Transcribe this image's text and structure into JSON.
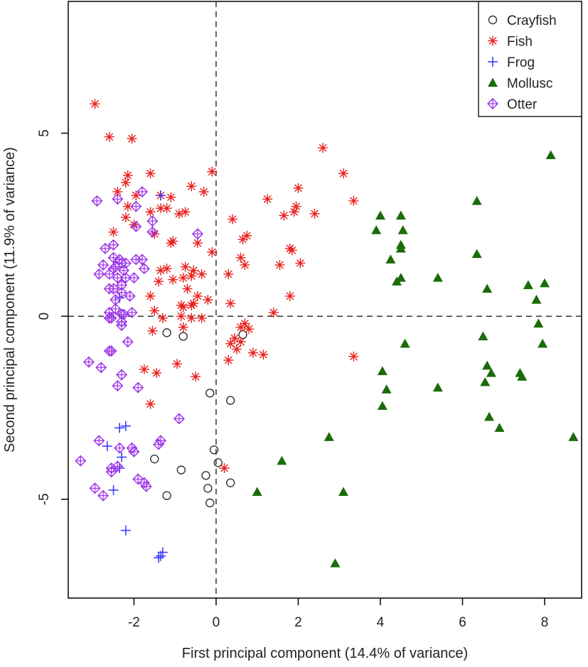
{
  "chart_data": {
    "type": "scatter",
    "title": "",
    "xlabel": "First principal component (14.4% of variance)",
    "ylabel": "Second principal component (11.9% of variance)",
    "xlim": [
      -3.6,
      8.9
    ],
    "ylim": [
      -7.7,
      8.6
    ],
    "xticks": [
      -2,
      0,
      2,
      4,
      6,
      8
    ],
    "yticks": [
      -5,
      0,
      5
    ],
    "grid": false,
    "reference_lines": {
      "x": 0,
      "y": 0,
      "style": "dashed"
    },
    "legend": {
      "position": "top-right"
    },
    "series": [
      {
        "name": "Crayfish",
        "marker": "open-circle",
        "color": "#333333",
        "points": [
          [
            -1.2,
            -0.45
          ],
          [
            -0.8,
            -0.55
          ],
          [
            0.65,
            -0.5
          ],
          [
            -0.15,
            -2.1
          ],
          [
            0.35,
            -2.3
          ],
          [
            -1.5,
            -3.9
          ],
          [
            -0.05,
            -3.65
          ],
          [
            0.05,
            -4.0
          ],
          [
            -0.85,
            -4.2
          ],
          [
            -0.25,
            -4.35
          ],
          [
            -0.2,
            -4.7
          ],
          [
            0.35,
            -4.55
          ],
          [
            -1.2,
            -4.9
          ],
          [
            -0.15,
            -5.1
          ]
        ]
      },
      {
        "name": "Fish",
        "marker": "asterisk",
        "color": "#e8201c",
        "points": [
          [
            -2.95,
            5.8
          ],
          [
            -2.6,
            4.9
          ],
          [
            -2.05,
            4.85
          ],
          [
            -0.1,
            3.95
          ],
          [
            2.6,
            4.6
          ],
          [
            3.1,
            3.9
          ],
          [
            -2.15,
            3.85
          ],
          [
            -2.2,
            3.65
          ],
          [
            -1.6,
            3.9
          ],
          [
            -0.6,
            3.55
          ],
          [
            -0.3,
            3.4
          ],
          [
            -2.4,
            3.4
          ],
          [
            -1.95,
            3.3
          ],
          [
            -1.35,
            3.3
          ],
          [
            -1.1,
            3.25
          ],
          [
            2.0,
            3.5
          ],
          [
            1.25,
            3.2
          ],
          [
            3.35,
            3.15
          ],
          [
            1.95,
            3.0
          ],
          [
            1.9,
            2.85
          ],
          [
            -2.15,
            3.0
          ],
          [
            -1.2,
            2.95
          ],
          [
            -1.35,
            2.95
          ],
          [
            -1.6,
            2.85
          ],
          [
            -0.9,
            2.8
          ],
          [
            -0.75,
            2.85
          ],
          [
            2.4,
            2.8
          ],
          [
            1.65,
            2.75
          ],
          [
            0.4,
            2.65
          ],
          [
            -2.2,
            2.7
          ],
          [
            -2.5,
            2.3
          ],
          [
            -2.0,
            2.5
          ],
          [
            -1.5,
            2.25
          ],
          [
            0.75,
            2.2
          ],
          [
            0.65,
            2.1
          ],
          [
            -1.1,
            2.0
          ],
          [
            -1.05,
            2.05
          ],
          [
            -0.45,
            2.0
          ],
          [
            1.8,
            1.85
          ],
          [
            1.85,
            1.8
          ],
          [
            -0.1,
            1.75
          ],
          [
            0.6,
            1.6
          ],
          [
            -0.75,
            1.35
          ],
          [
            -0.55,
            1.25
          ],
          [
            -1.2,
            1.3
          ],
          [
            -1.35,
            1.25
          ],
          [
            -0.35,
            1.15
          ],
          [
            0.3,
            1.15
          ],
          [
            0.7,
            1.4
          ],
          [
            1.55,
            1.4
          ],
          [
            2.05,
            1.45
          ],
          [
            -0.6,
            1.1
          ],
          [
            -0.8,
            1.05
          ],
          [
            -1.05,
            1.0
          ],
          [
            -1.4,
            0.95
          ],
          [
            -0.7,
            0.75
          ],
          [
            -0.45,
            0.55
          ],
          [
            -1.6,
            0.55
          ],
          [
            -0.2,
            0.45
          ],
          [
            0.35,
            0.35
          ],
          [
            -0.85,
            0.3
          ],
          [
            -0.55,
            0.35
          ],
          [
            -0.6,
            0.3
          ],
          [
            -0.8,
            0.25
          ],
          [
            -1.5,
            0.15
          ],
          [
            1.8,
            0.55
          ],
          [
            1.4,
            0.1
          ],
          [
            -1.3,
            -0.05
          ],
          [
            -0.85,
            0.0
          ],
          [
            -0.6,
            -0.05
          ],
          [
            -0.35,
            -0.05
          ],
          [
            0.7,
            -0.2
          ],
          [
            0.6,
            -0.3
          ],
          [
            0.8,
            -0.35
          ],
          [
            0.45,
            -0.6
          ],
          [
            0.35,
            -0.75
          ],
          [
            0.6,
            -0.7
          ],
          [
            0.5,
            -0.9
          ],
          [
            -0.8,
            -0.3
          ],
          [
            -1.55,
            -0.4
          ],
          [
            0.9,
            -1.0
          ],
          [
            1.15,
            -1.05
          ],
          [
            3.35,
            -1.1
          ],
          [
            0.3,
            -1.2
          ],
          [
            -0.95,
            -1.3
          ],
          [
            -1.75,
            -1.45
          ],
          [
            -1.45,
            -1.55
          ],
          [
            -0.5,
            -1.65
          ],
          [
            -1.6,
            -2.4
          ],
          [
            0.2,
            -4.15
          ]
        ]
      },
      {
        "name": "Frog",
        "marker": "plus",
        "color": "#3b3bff",
        "points": [
          [
            -1.35,
            3.3
          ],
          [
            -2.35,
            0.5
          ],
          [
            -2.35,
            -3.05
          ],
          [
            -2.2,
            -3.0
          ],
          [
            -2.65,
            -3.55
          ],
          [
            -2.3,
            -3.85
          ],
          [
            -2.35,
            -4.15
          ],
          [
            -2.5,
            -4.75
          ],
          [
            -2.2,
            -5.85
          ],
          [
            -1.3,
            -6.45
          ],
          [
            -1.35,
            -6.55
          ],
          [
            -1.4,
            -6.6
          ]
        ]
      },
      {
        "name": "Mollusc",
        "marker": "filled-triangle",
        "color": "#1a6b0a",
        "points": [
          [
            8.15,
            4.4
          ],
          [
            6.35,
            3.15
          ],
          [
            4.0,
            2.75
          ],
          [
            4.5,
            2.75
          ],
          [
            3.9,
            2.35
          ],
          [
            4.55,
            2.35
          ],
          [
            4.5,
            1.95
          ],
          [
            4.5,
            1.85
          ],
          [
            4.25,
            1.55
          ],
          [
            6.35,
            1.7
          ],
          [
            5.4,
            1.05
          ],
          [
            4.4,
            0.95
          ],
          [
            4.5,
            1.05
          ],
          [
            6.6,
            0.75
          ],
          [
            7.6,
            0.85
          ],
          [
            8.0,
            0.9
          ],
          [
            7.8,
            0.45
          ],
          [
            7.85,
            -0.2
          ],
          [
            6.5,
            -0.55
          ],
          [
            4.6,
            -0.75
          ],
          [
            7.95,
            -0.75
          ],
          [
            6.6,
            -1.35
          ],
          [
            6.7,
            -1.55
          ],
          [
            7.4,
            -1.55
          ],
          [
            7.45,
            -1.65
          ],
          [
            6.55,
            -1.8
          ],
          [
            4.05,
            -1.5
          ],
          [
            4.15,
            -2.0
          ],
          [
            5.4,
            -1.95
          ],
          [
            4.05,
            -2.45
          ],
          [
            6.65,
            -2.75
          ],
          [
            6.9,
            -3.05
          ],
          [
            8.7,
            -3.3
          ],
          [
            2.75,
            -3.3
          ],
          [
            1.6,
            -3.95
          ],
          [
            1.0,
            -4.8
          ],
          [
            3.1,
            -4.8
          ],
          [
            2.9,
            -6.75
          ]
        ]
      },
      {
        "name": "Otter",
        "marker": "diamond-plus",
        "color": "#9b30e8",
        "points": [
          [
            -2.9,
            3.15
          ],
          [
            -2.4,
            3.2
          ],
          [
            -1.8,
            3.4
          ],
          [
            -1.95,
            3.0
          ],
          [
            -1.95,
            2.45
          ],
          [
            -1.55,
            2.6
          ],
          [
            -0.45,
            2.25
          ],
          [
            -1.55,
            2.3
          ],
          [
            -2.7,
            1.85
          ],
          [
            -2.5,
            1.95
          ],
          [
            -2.5,
            1.6
          ],
          [
            -2.35,
            1.55
          ],
          [
            -2.3,
            1.45
          ],
          [
            -2.2,
            1.45
          ],
          [
            -2.75,
            1.4
          ],
          [
            -2.5,
            1.3
          ],
          [
            -2.45,
            1.35
          ],
          [
            -2.25,
            1.25
          ],
          [
            -1.95,
            1.55
          ],
          [
            -1.8,
            1.55
          ],
          [
            -1.75,
            1.3
          ],
          [
            -2.85,
            1.15
          ],
          [
            -2.6,
            1.15
          ],
          [
            -2.4,
            1.05
          ],
          [
            -2.2,
            1.05
          ],
          [
            -2.0,
            1.05
          ],
          [
            -2.3,
            0.85
          ],
          [
            -2.5,
            0.75
          ],
          [
            -2.6,
            0.75
          ],
          [
            -2.3,
            0.65
          ],
          [
            -2.1,
            0.55
          ],
          [
            -2.45,
            0.45
          ],
          [
            -2.45,
            0.2
          ],
          [
            -2.6,
            0.1
          ],
          [
            -2.3,
            0.05
          ],
          [
            -2.25,
            0.05
          ],
          [
            -2.05,
            0.1
          ],
          [
            -2.6,
            -0.05
          ],
          [
            -2.55,
            -0.05
          ],
          [
            -2.3,
            -0.15
          ],
          [
            -2.3,
            -0.25
          ],
          [
            -2.15,
            -0.7
          ],
          [
            -2.55,
            -0.95
          ],
          [
            -2.6,
            -0.95
          ],
          [
            -3.1,
            -1.25
          ],
          [
            -2.8,
            -1.4
          ],
          [
            -2.3,
            -1.6
          ],
          [
            -2.4,
            -1.9
          ],
          [
            -1.9,
            -1.95
          ],
          [
            -0.9,
            -2.8
          ],
          [
            -3.3,
            -3.95
          ],
          [
            -2.35,
            -3.6
          ],
          [
            -2.05,
            -3.6
          ],
          [
            -2.0,
            -3.7
          ],
          [
            -2.85,
            -3.4
          ],
          [
            -1.35,
            -3.4
          ],
          [
            -1.4,
            -3.5
          ],
          [
            -2.4,
            -4.1
          ],
          [
            -2.55,
            -4.15
          ],
          [
            -2.55,
            -4.25
          ],
          [
            -1.9,
            -4.45
          ],
          [
            -1.75,
            -4.55
          ],
          [
            -1.7,
            -4.65
          ],
          [
            -2.95,
            -4.7
          ],
          [
            -2.75,
            -4.9
          ]
        ]
      }
    ]
  }
}
